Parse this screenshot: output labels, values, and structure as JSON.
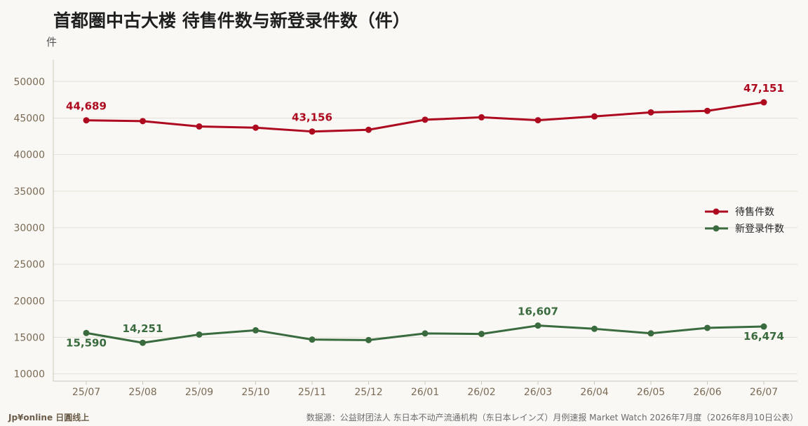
{
  "chart_data": {
    "type": "line",
    "title": "首都圏中古大楼 待售件数与新登录件数（件）",
    "ylabel": "件",
    "xlabel": "",
    "ylim": [
      9000,
      53000
    ],
    "yticks": [
      10000,
      15000,
      20000,
      25000,
      30000,
      35000,
      40000,
      45000,
      50000
    ],
    "grid": true,
    "legend_position": "right",
    "categories": [
      "25/07",
      "25/08",
      "25/09",
      "25/10",
      "25/11",
      "25/12",
      "26/01",
      "26/02",
      "26/03",
      "26/04",
      "26/05",
      "26/06",
      "26/07"
    ],
    "series": [
      {
        "name": "待售件数",
        "color": "#ad0a20",
        "values": [
          44689,
          44580,
          43850,
          43680,
          43156,
          43390,
          44770,
          45100,
          44700,
          45220,
          45780,
          45980,
          47151
        ],
        "labels": [
          {
            "index": 0,
            "text": "44,689",
            "pos": "above"
          },
          {
            "index": 4,
            "text": "43,156",
            "pos": "above"
          },
          {
            "index": 12,
            "text": "47,151",
            "pos": "above"
          }
        ]
      },
      {
        "name": "新登录件数",
        "color": "#3a6b3e",
        "values": [
          15590,
          14251,
          15380,
          15960,
          14690,
          14620,
          15530,
          15460,
          16607,
          16160,
          15540,
          16290,
          16474
        ],
        "labels": [
          {
            "index": 0,
            "text": "15,590",
            "pos": "below"
          },
          {
            "index": 1,
            "text": "14,251",
            "pos": "above"
          },
          {
            "index": 8,
            "text": "16,607",
            "pos": "above"
          },
          {
            "index": 12,
            "text": "16,474",
            "pos": "below"
          }
        ]
      }
    ]
  },
  "footer": {
    "brand": "Jp¥online 日圓线上",
    "source": "数据源：公益财团法人 东日本不动产流通机构（东日本レインズ）月例速报 Market Watch 2026年7月度（2026年8月10日公表）"
  }
}
